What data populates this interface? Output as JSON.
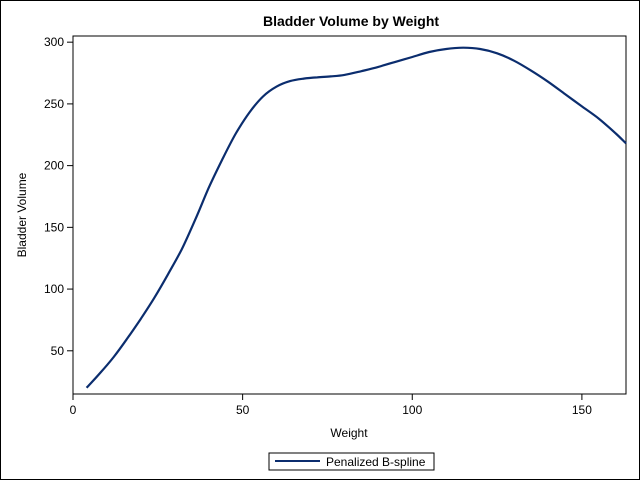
{
  "chart_data": {
    "type": "line",
    "title": "Bladder Volume by Weight",
    "xlabel": "Weight",
    "ylabel": "Bladder Volume",
    "xlim": [
      0,
      163
    ],
    "ylim": [
      15,
      305
    ],
    "xticks": [
      0,
      50,
      100,
      150
    ],
    "yticks": [
      50,
      100,
      150,
      200,
      250,
      300
    ],
    "grid": false,
    "legend_position": "bottom",
    "series": [
      {
        "name": "Penalized B-spline",
        "color": "#0b2d6e",
        "points": [
          [
            4,
            20
          ],
          [
            8,
            32
          ],
          [
            12,
            45
          ],
          [
            16,
            60
          ],
          [
            20,
            76
          ],
          [
            24,
            93
          ],
          [
            28,
            112
          ],
          [
            32,
            132
          ],
          [
            36,
            156
          ],
          [
            40,
            182
          ],
          [
            44,
            205
          ],
          [
            48,
            226
          ],
          [
            52,
            243
          ],
          [
            56,
            256
          ],
          [
            60,
            264
          ],
          [
            64,
            268.5
          ],
          [
            68,
            270.5
          ],
          [
            72,
            271.5
          ],
          [
            76,
            272.3
          ],
          [
            80,
            273.5
          ],
          [
            85,
            276.5
          ],
          [
            90,
            280
          ],
          [
            95,
            284
          ],
          [
            100,
            288
          ],
          [
            105,
            292
          ],
          [
            110,
            294.5
          ],
          [
            115,
            295.5
          ],
          [
            120,
            294.5
          ],
          [
            125,
            291
          ],
          [
            130,
            285
          ],
          [
            135,
            277
          ],
          [
            140,
            268
          ],
          [
            145,
            258
          ],
          [
            150,
            248
          ],
          [
            155,
            238
          ],
          [
            160,
            226
          ],
          [
            163,
            218
          ]
        ]
      }
    ]
  }
}
